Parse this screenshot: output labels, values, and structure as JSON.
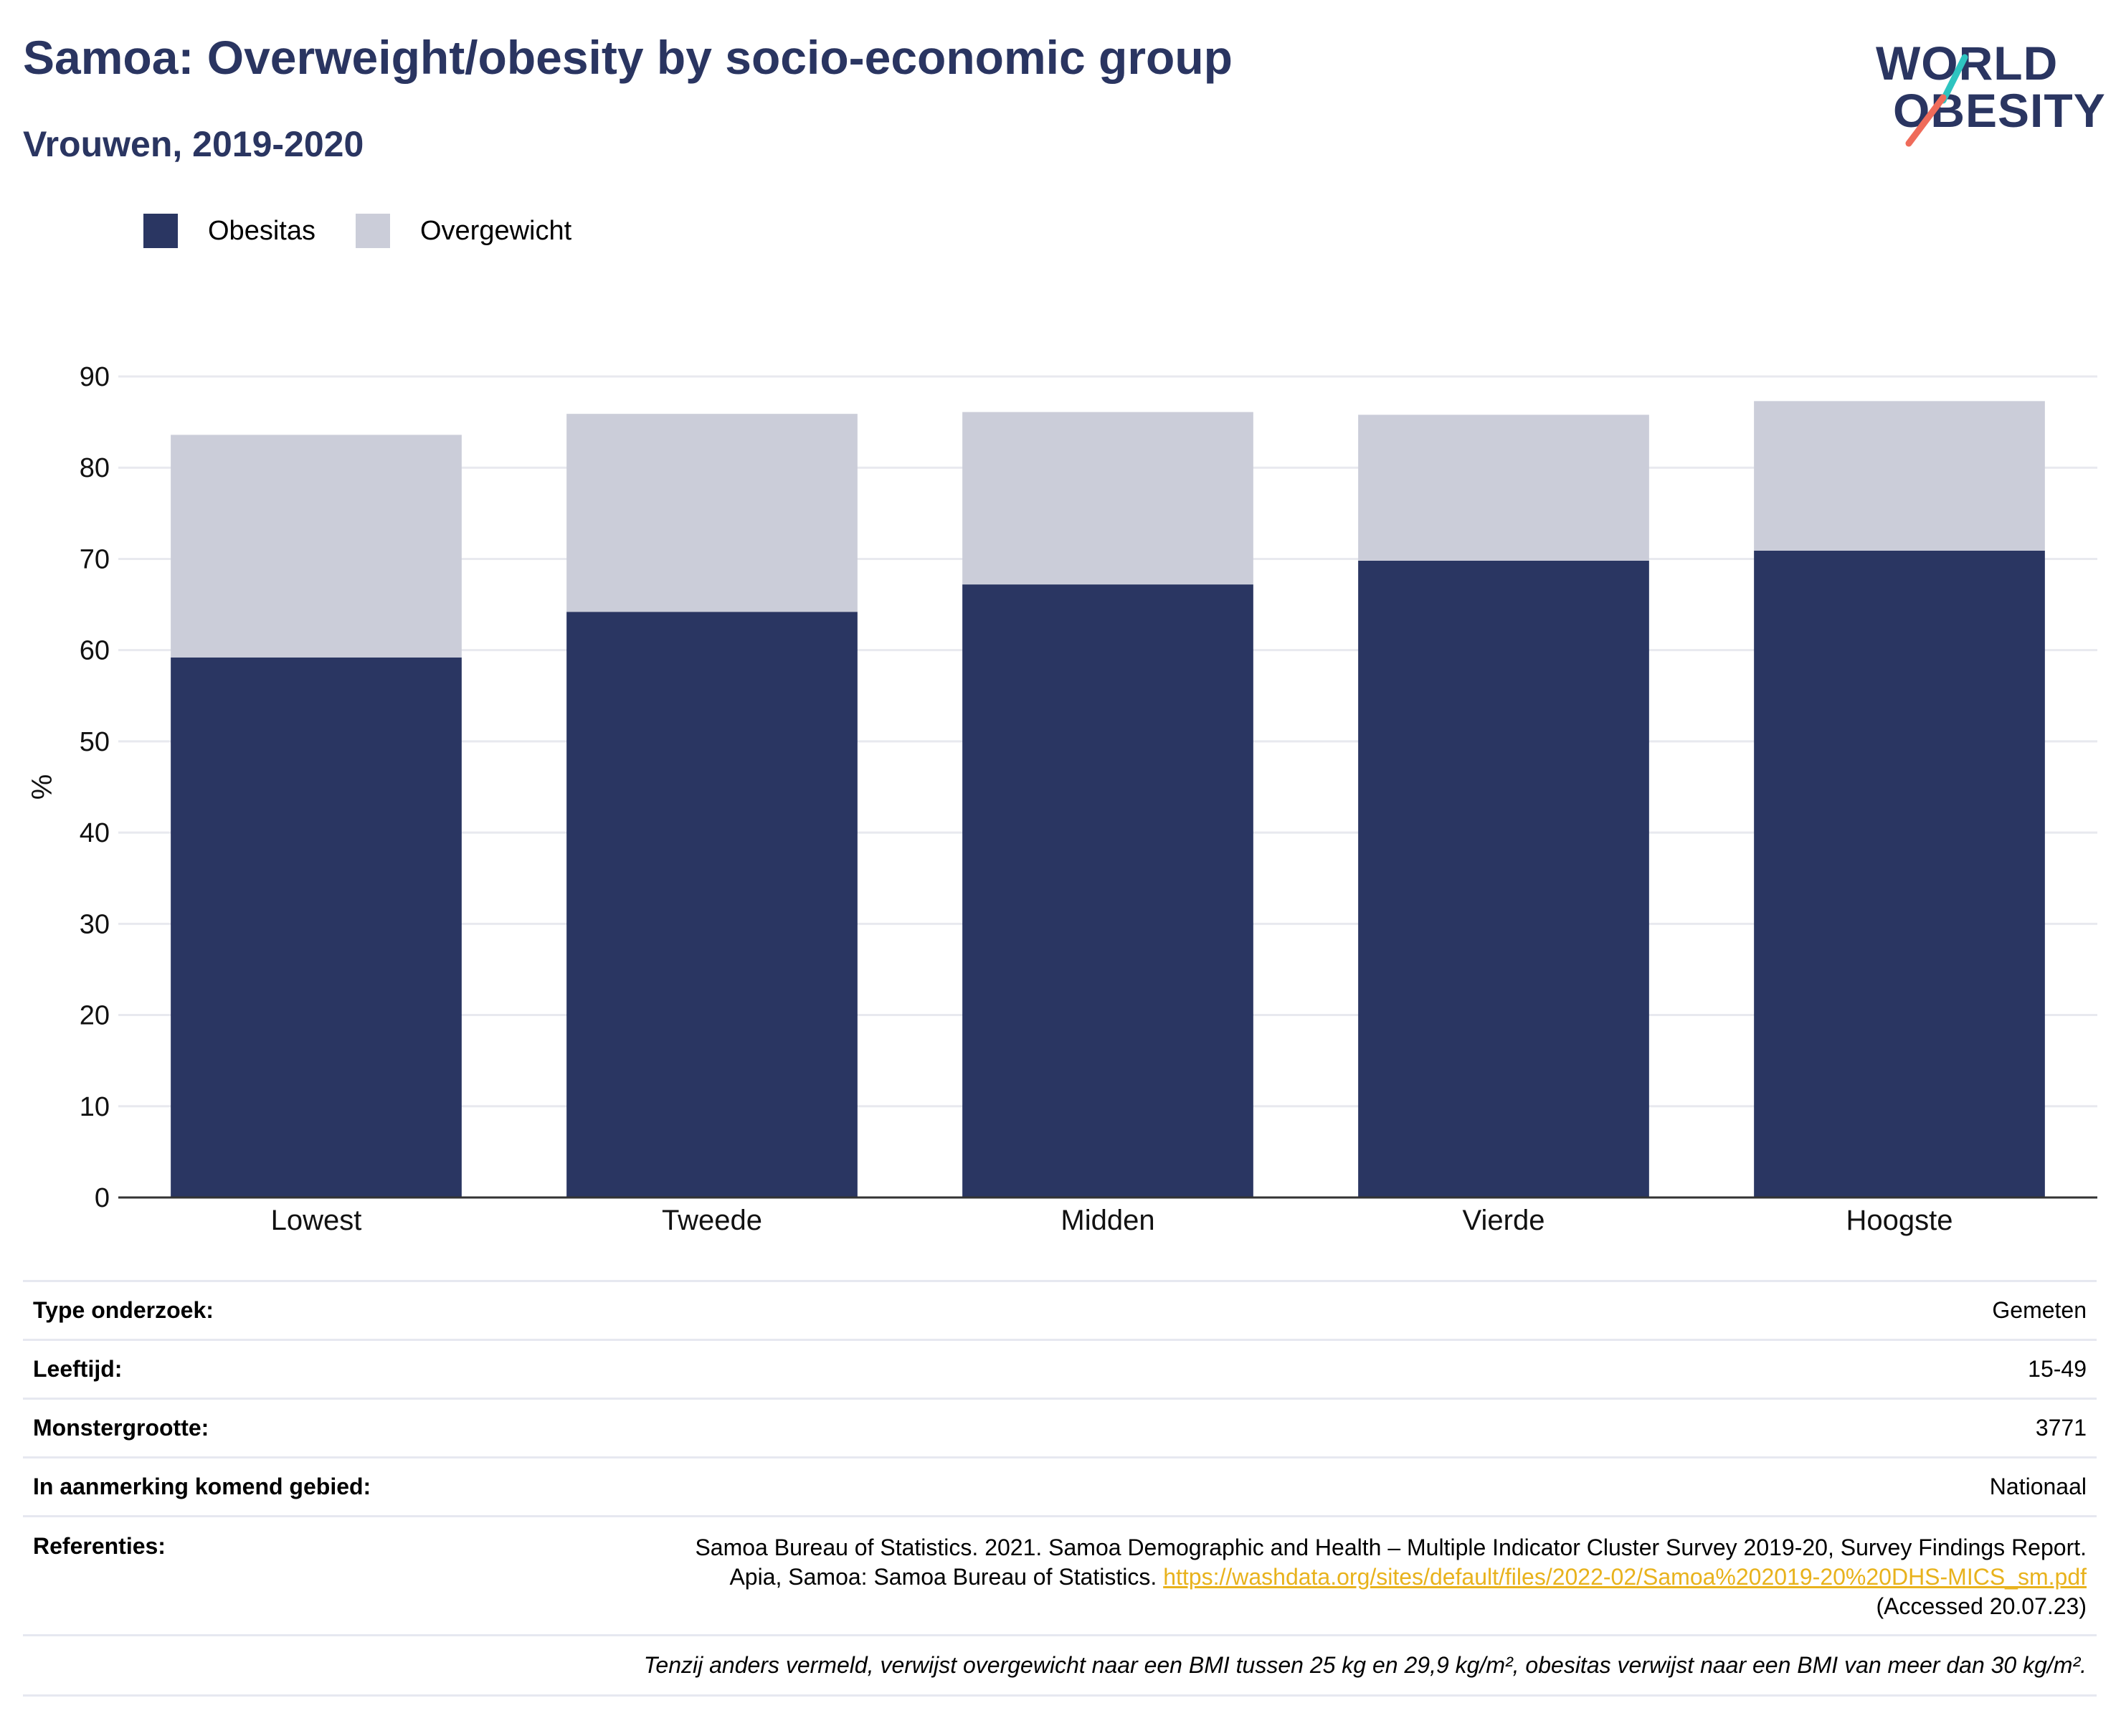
{
  "header": {
    "title": "Samoa: Overweight/obesity by socio-economic group",
    "subtitle": "Vrouwen, 2019-2020"
  },
  "logo": {
    "line1": "WORLD",
    "line2": "OBESITY"
  },
  "colors": {
    "obesity": "#2a3662",
    "overweight": "#cbcdd9",
    "title": "#2a3561",
    "link": "#e8b21c",
    "logo_teal": "#2ec4c0",
    "logo_coral": "#ef6b5a"
  },
  "legend": [
    {
      "label": "Obesitas",
      "color": "#2a3662"
    },
    {
      "label": "Overgewicht",
      "color": "#cbcdd9"
    }
  ],
  "chart_data": {
    "type": "bar",
    "stacked": true,
    "categories": [
      "Lowest",
      "Tweede",
      "Midden",
      "Vierde",
      "Hoogste"
    ],
    "series": [
      {
        "name": "Obesitas",
        "values": [
          59.2,
          64.2,
          67.2,
          69.8,
          70.9
        ]
      },
      {
        "name": "Overgewicht",
        "values": [
          24.4,
          21.7,
          18.9,
          16.0,
          16.4
        ]
      }
    ],
    "ylabel": "%",
    "xlabel": "",
    "ylim": [
      0,
      90
    ],
    "yticks": [
      0,
      10,
      20,
      30,
      40,
      50,
      60,
      70,
      80,
      90
    ],
    "grid": true,
    "legend_position": "top-left"
  },
  "info": {
    "survey_type": {
      "label": "Type onderzoek:",
      "value": "Gemeten"
    },
    "age": {
      "label": "Leeftijd:",
      "value": "15-49"
    },
    "sample_size": {
      "label": "Monstergrootte:",
      "value": "3771"
    },
    "area": {
      "label": "In aanmerking komend gebied:",
      "value": "Nationaal"
    },
    "references": {
      "label": "Referenties:",
      "text": "Samoa Bureau of Statistics. 2021. Samoa Demographic and Health – Multiple Indicator Cluster Survey 2019-20, Survey Findings Report. Apia, Samoa: Samoa Bureau of Statistics.",
      "link": "https://washdata.org/sites/default/files/2022-02/Samoa%202019-20%20DHS-MICS_sm.pdf",
      "accessed": "(Accessed 20.07.23)"
    },
    "note": "Tenzij anders vermeld, verwijst overgewicht naar een BMI tussen 25 kg en 29,9 kg/m², obesitas verwijst naar een BMI van meer dan 30 kg/m²."
  }
}
